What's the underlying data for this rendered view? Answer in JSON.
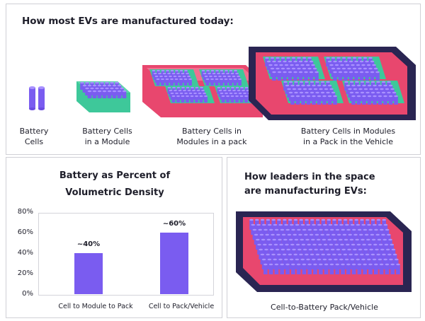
{
  "top": {
    "title": "How most EVs are manufactured today:",
    "captions": [
      {
        "line1": "Battery",
        "line2": "Cells"
      },
      {
        "line1": "Battery Cells",
        "line2": "in a Module"
      },
      {
        "line1": "Battery Cells in",
        "line2": "Modules in a pack"
      },
      {
        "line1": "Battery Cells in Modules",
        "line2": "in a Pack in the Vehicle"
      }
    ]
  },
  "chart": {
    "title_line1": "Battery as Percent of",
    "title_line2": "Volumetric Density",
    "y_ticks": [
      "80%",
      "60%",
      "40%",
      "20%",
      "0%"
    ]
  },
  "chart_data": {
    "type": "bar",
    "categories": [
      "Cell to Module to Pack",
      "Cell to Pack/Vehicle"
    ],
    "values": [
      40,
      60
    ],
    "data_labels": [
      "~40%",
      "~60%"
    ],
    "title": "Battery as Percent of Volumetric Density",
    "ylim": [
      0,
      80
    ],
    "grid": false
  },
  "leaders": {
    "title_line1": "How leaders in the space",
    "title_line2": "are manufacturing EVs:",
    "caption": "Cell-to-Battery Pack/Vehicle"
  },
  "colors": {
    "cell": "#7a5cf0",
    "module": "#3ec89a",
    "pack": "#e8476e",
    "vehicle": "#2a2552",
    "bar": "#7a5cf0"
  }
}
